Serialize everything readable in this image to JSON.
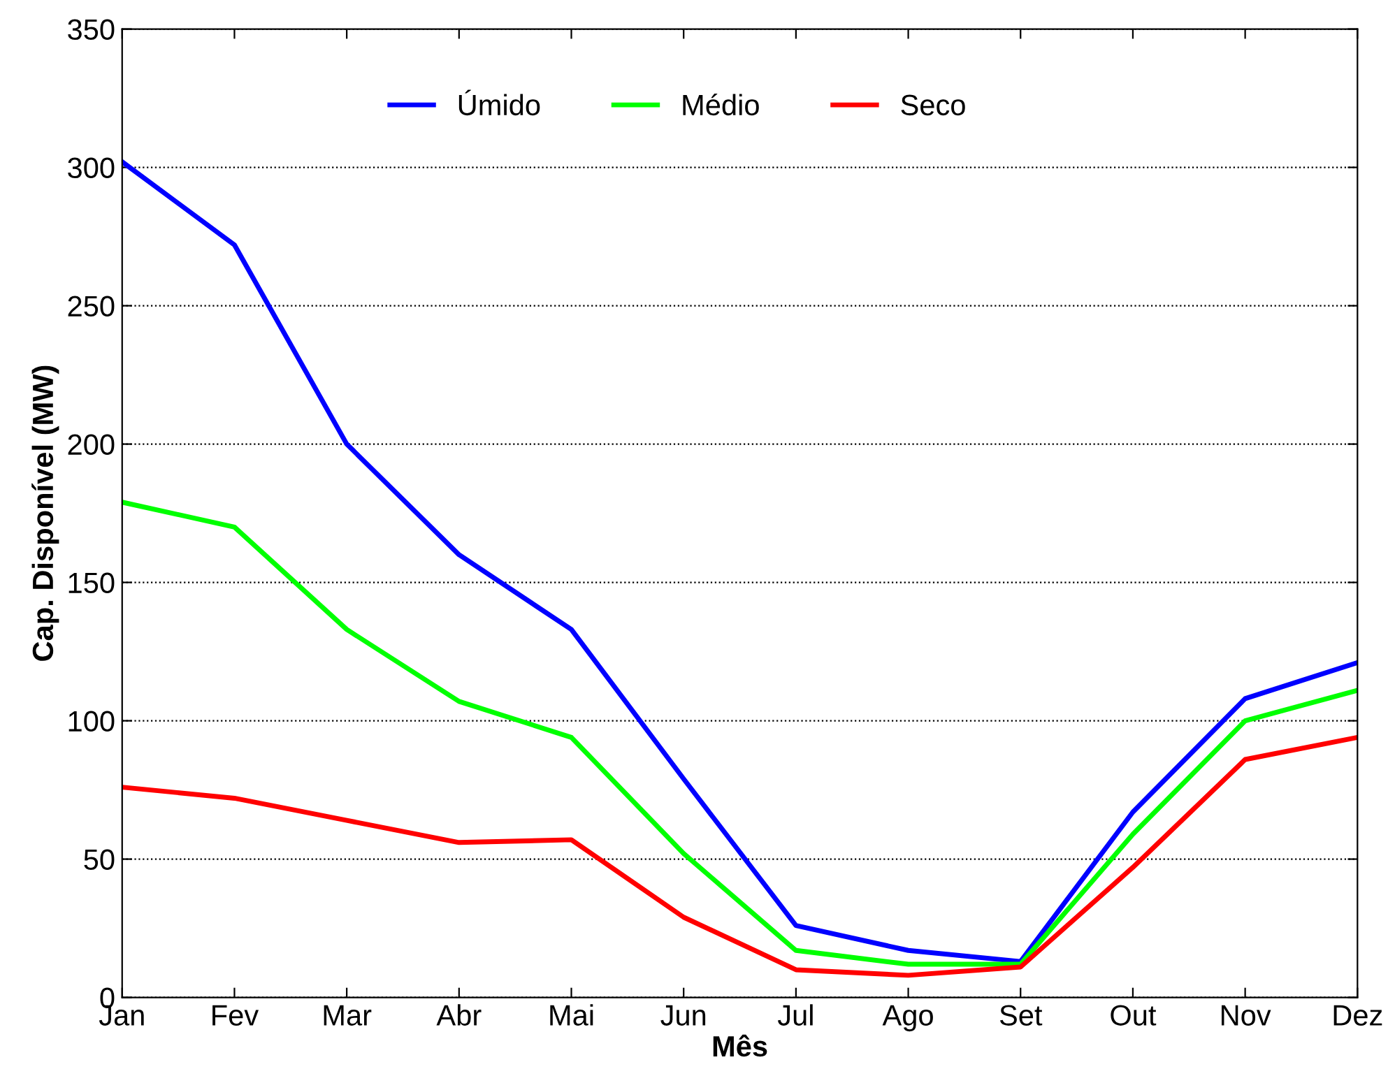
{
  "chart_data": {
    "type": "line",
    "xlabel": "Mês",
    "ylabel": "Cap. Disponível (MW)",
    "categories": [
      "Jan",
      "Fev",
      "Mar",
      "Abr",
      "Mai",
      "Jun",
      "Jul",
      "Ago",
      "Set",
      "Out",
      "Nov",
      "Dez"
    ],
    "series": [
      {
        "name": "Úmido",
        "color": "#0000ff",
        "values": [
          302,
          272,
          200,
          160,
          133,
          79,
          26,
          17,
          13,
          67,
          108,
          121
        ]
      },
      {
        "name": "Médio",
        "color": "#00ff00",
        "values": [
          179,
          170,
          133,
          107,
          94,
          52,
          17,
          12,
          12,
          59,
          100,
          111
        ]
      },
      {
        "name": "Seco",
        "color": "#ff0000",
        "values": [
          76,
          72,
          64,
          56,
          57,
          29,
          10,
          8,
          11,
          47,
          86,
          94
        ]
      }
    ],
    "ylim": [
      0,
      350
    ],
    "yticks": [
      0,
      50,
      100,
      150,
      200,
      250,
      300,
      350
    ],
    "grid": "y",
    "legend": "top",
    "marker": "none",
    "line_style": "solid"
  }
}
